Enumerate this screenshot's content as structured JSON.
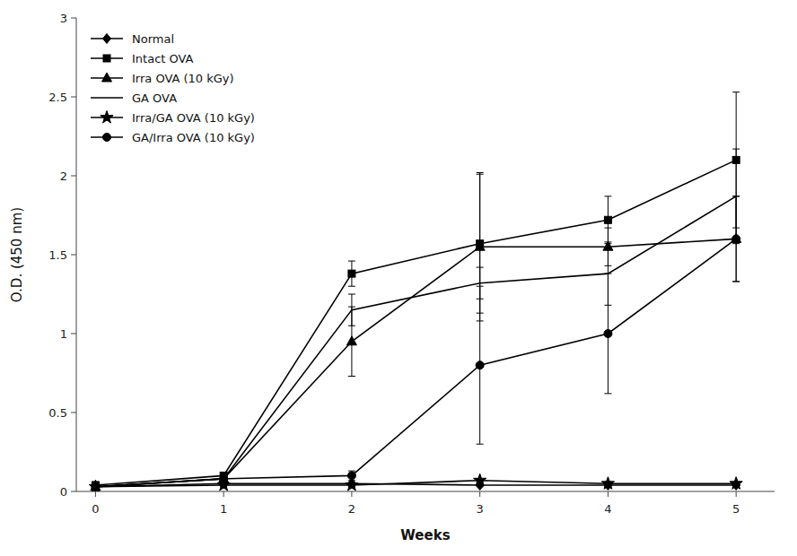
{
  "chart_data": {
    "type": "line",
    "xlabel": "Weeks",
    "ylabel": "O.D. (450 nm)",
    "x": [
      0,
      1,
      2,
      3,
      4,
      5
    ],
    "color": "#000000",
    "line_style": "solid",
    "legend": "upper left",
    "grid": false,
    "xlim": [
      -0.15,
      5.3
    ],
    "ylim": [
      0,
      3.0
    ],
    "xticks": [
      0,
      1,
      2,
      3,
      4,
      5
    ],
    "yticks": [
      0,
      0.5,
      1,
      1.5,
      2,
      2.5,
      3
    ],
    "series": [
      {
        "name": "Normal",
        "marker": "diamond",
        "values": [
          0.03,
          0.05,
          0.05,
          0.04,
          0.04,
          0.04
        ],
        "errors": [
          0.01,
          0.01,
          0.01,
          0.01,
          0.01,
          0.01
        ]
      },
      {
        "name": "Intact OVA",
        "marker": "square",
        "values": [
          0.04,
          0.1,
          1.38,
          1.57,
          1.72,
          2.1
        ],
        "errors": [
          0.01,
          0.02,
          0.08,
          0.44,
          0.15,
          0.43
        ]
      },
      {
        "name": "Irra OVA (10 kGy)",
        "marker": "triangle",
        "values": [
          0.03,
          0.08,
          0.95,
          1.55,
          1.55,
          1.6
        ],
        "errors": [
          0.01,
          0.02,
          0.22,
          0.47,
          0.12,
          0.27
        ]
      },
      {
        "name": "GA OVA",
        "marker": "none",
        "values": [
          0.03,
          0.08,
          1.15,
          1.32,
          1.38,
          1.87
        ],
        "errors": [
          0.01,
          0.02,
          0.1,
          0.1,
          0.2,
          0.3
        ]
      },
      {
        "name": "Irra/GA OVA (10 kGy)",
        "marker": "star",
        "values": [
          0.03,
          0.04,
          0.04,
          0.07,
          0.05,
          0.05
        ],
        "errors": [
          0.01,
          0.01,
          0.01,
          0.01,
          0.01,
          0.01
        ]
      },
      {
        "name": "GA/Irra OVA (10 kGy)",
        "marker": "circle",
        "values": [
          0.03,
          0.08,
          0.1,
          0.8,
          1.0,
          1.6
        ],
        "errors": [
          0.01,
          0.02,
          0.03,
          0.5,
          0.38,
          0.27
        ]
      }
    ]
  }
}
